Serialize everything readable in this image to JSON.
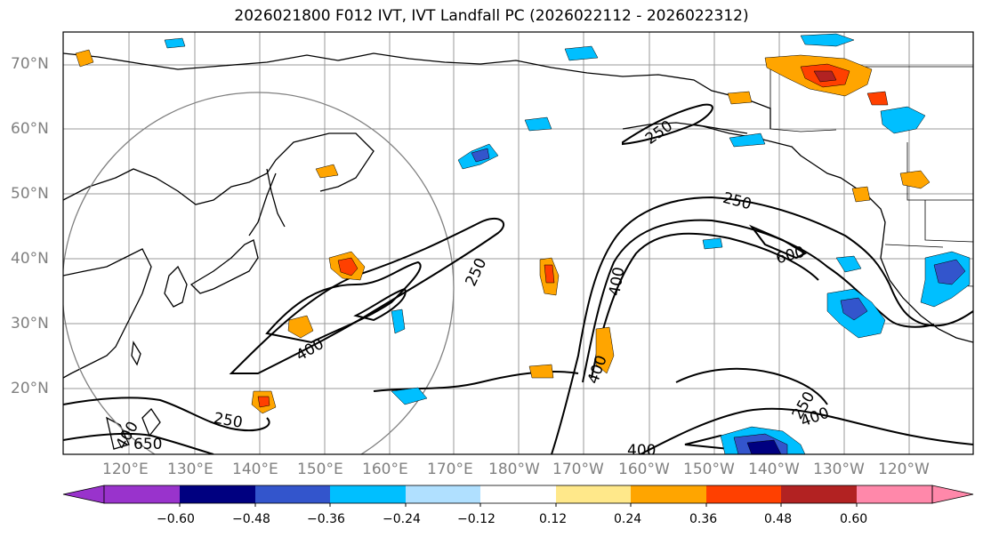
{
  "title": "2026021800 F012 IVT, IVT Landfall PC (2026022112 - 2026022312)",
  "lat_labels": [
    "70°N",
    "60°N",
    "50°N",
    "40°N",
    "30°N",
    "20°N"
  ],
  "lon_labels": [
    "120°E",
    "130°E",
    "140°E",
    "150°E",
    "160°E",
    "170°E",
    "180°W",
    "170°W",
    "160°W",
    "150°W",
    "140°W",
    "130°W",
    "120°W"
  ],
  "contour_labels": [
    "250",
    "250",
    "250",
    "250",
    "250",
    "400",
    "400",
    "400",
    "400",
    "400",
    "400",
    "600",
    "650"
  ],
  "colorbar": {
    "colors": [
      "#9933cc",
      "#000080",
      "#3355cc",
      "#00bfff",
      "#b0e0ff",
      "#ffffff",
      "#ffe88a",
      "#ffa500",
      "#ff4000",
      "#b22222",
      "#ff88aa"
    ],
    "ticks": [
      "−0.60",
      "−0.48",
      "−0.36",
      "−0.24",
      "−0.12",
      "0.12",
      "0.24",
      "0.36",
      "0.48",
      "0.60"
    ]
  }
}
